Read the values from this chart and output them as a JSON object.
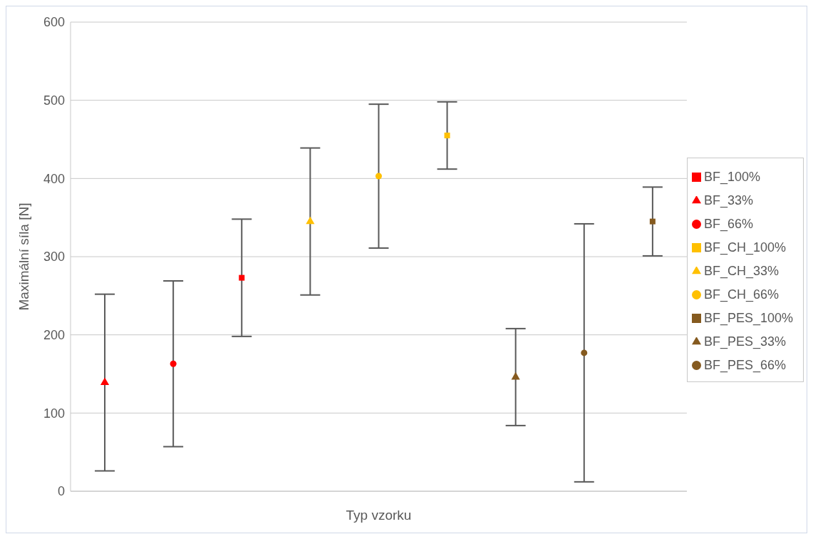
{
  "chart_data": {
    "type": "scatter",
    "xlabel": "Typ vzorku",
    "ylabel": "Maximální síla [N]",
    "categories": [
      null,
      null,
      null,
      null,
      null,
      null,
      null,
      null,
      null
    ],
    "ylim": [
      0,
      600
    ],
    "yticks": [
      0,
      100,
      200,
      300,
      400,
      500,
      600
    ],
    "grid": "y",
    "legend": "right",
    "series": [
      {
        "name": "BF_33%",
        "color": "#ff0000",
        "marker": "triangle",
        "values": [
          139,
          null,
          null,
          null,
          null,
          null,
          null,
          null,
          null
        ],
        "errors": [
          113,
          null,
          null,
          null,
          null,
          null,
          null,
          null,
          null
        ]
      },
      {
        "name": "BF_66%",
        "color": "#ff0000",
        "marker": "circle",
        "values": [
          null,
          163,
          null,
          null,
          null,
          null,
          null,
          null,
          null
        ],
        "errors": [
          null,
          106,
          null,
          null,
          null,
          null,
          null,
          null,
          null
        ]
      },
      {
        "name": "BF_100%",
        "color": "#ff0000",
        "marker": "square",
        "values": [
          null,
          null,
          273,
          null,
          null,
          null,
          null,
          null,
          null
        ],
        "errors": [
          null,
          null,
          75,
          null,
          null,
          null,
          null,
          null,
          null
        ]
      },
      {
        "name": "BF_CH_33%",
        "color": "#ffc000",
        "marker": "triangle",
        "values": [
          null,
          null,
          null,
          345,
          null,
          null,
          null,
          null,
          null
        ],
        "errors": [
          null,
          null,
          null,
          94,
          null,
          null,
          null,
          null,
          null
        ]
      },
      {
        "name": "BF_CH_66%",
        "color": "#ffc000",
        "marker": "circle",
        "values": [
          null,
          null,
          null,
          null,
          403,
          null,
          null,
          null,
          null
        ],
        "errors": [
          null,
          null,
          null,
          null,
          92,
          null,
          null,
          null,
          null
        ]
      },
      {
        "name": "BF_CH_100%",
        "color": "#ffc000",
        "marker": "square",
        "values": [
          null,
          null,
          null,
          null,
          null,
          455,
          null,
          null,
          null
        ],
        "errors": [
          null,
          null,
          null,
          null,
          null,
          43,
          null,
          null,
          null
        ]
      },
      {
        "name": "BF_PES_33%",
        "color": "#855a1f",
        "marker": "triangle",
        "values": [
          null,
          null,
          null,
          null,
          null,
          null,
          146,
          null,
          null
        ],
        "errors": [
          null,
          null,
          null,
          null,
          null,
          null,
          62,
          null,
          null
        ]
      },
      {
        "name": "BF_PES_66%",
        "color": "#855a1f",
        "marker": "circle",
        "values": [
          null,
          null,
          null,
          null,
          null,
          null,
          null,
          177,
          null
        ],
        "errors": [
          null,
          null,
          null,
          null,
          null,
          null,
          null,
          165,
          null
        ]
      },
      {
        "name": "BF_PES_100%",
        "color": "#855a1f",
        "marker": "square",
        "values": [
          null,
          null,
          null,
          null,
          null,
          null,
          null,
          null,
          345
        ],
        "errors": [
          null,
          null,
          null,
          null,
          null,
          null,
          null,
          null,
          44
        ]
      }
    ]
  }
}
